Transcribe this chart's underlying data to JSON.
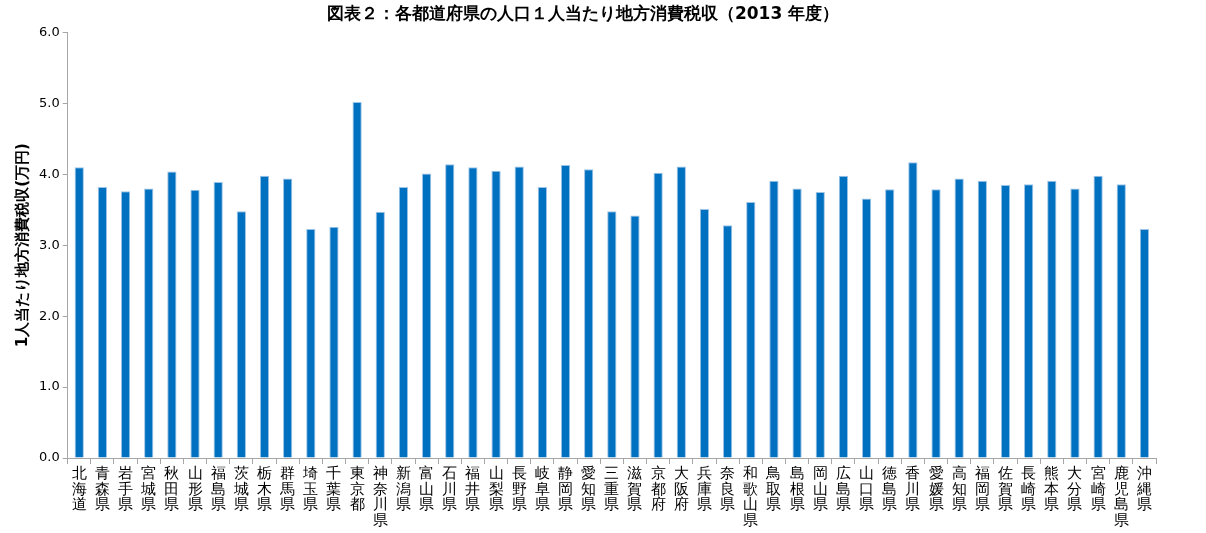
{
  "chart_data": {
    "type": "bar",
    "title": "図表２：各都道府県の人口１人当たり地方消費税収（2013 年度）",
    "ylabel": "1人当たり地方消費税収(万円)",
    "categories": [
      "北海道",
      "青森県",
      "岩手県",
      "宮城県",
      "秋田県",
      "山形県",
      "福島県",
      "茨城県",
      "栃木県",
      "群馬県",
      "埼玉県",
      "千葉県",
      "東京都",
      "神奈川県",
      "新潟県",
      "富山県",
      "石川県",
      "福井県",
      "山梨県",
      "長野県",
      "岐阜県",
      "静岡県",
      "愛知県",
      "三重県",
      "滋賀県",
      "京都府",
      "大阪府",
      "兵庫県",
      "奈良県",
      "和歌山県",
      "鳥取県",
      "島根県",
      "岡山県",
      "広島県",
      "山口県",
      "徳島県",
      "香川県",
      "愛媛県",
      "高知県",
      "福岡県",
      "佐賀県",
      "長崎県",
      "熊本県",
      "大分県",
      "宮崎県",
      "鹿児島県",
      "沖縄県"
    ],
    "values": [
      4.1,
      3.82,
      3.76,
      3.8,
      4.04,
      3.78,
      3.89,
      3.48,
      3.98,
      3.94,
      3.23,
      3.26,
      5.02,
      3.47,
      3.82,
      4.01,
      4.14,
      4.1,
      4.05,
      4.11,
      3.82,
      4.13,
      4.07,
      3.48,
      3.42,
      4.02,
      4.11,
      3.51,
      3.28,
      3.61,
      3.91,
      3.8,
      3.75,
      3.98,
      3.66,
      3.79,
      4.17,
      3.79,
      3.94,
      3.91,
      3.85,
      3.86,
      3.91,
      3.8,
      3.98,
      3.86,
      3.23
    ],
    "color": "#0070c0",
    "ylim": [
      0,
      6
    ],
    "yticks": [
      {
        "value": 0,
        "label": "0.0"
      },
      {
        "value": 1,
        "label": "1.0"
      },
      {
        "value": 2,
        "label": "2.0"
      },
      {
        "value": 3,
        "label": "3.0"
      },
      {
        "value": 4,
        "label": "4.0"
      },
      {
        "value": 5,
        "label": "5.0"
      },
      {
        "value": 6,
        "label": "6.0"
      }
    ],
    "grid": false,
    "legend": false
  }
}
